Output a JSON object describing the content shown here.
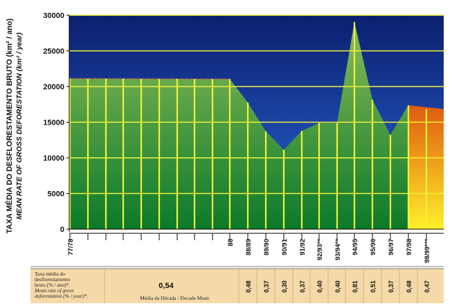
{
  "chart_data": {
    "type": "area",
    "ylabel": "TAXA MÉDIA DO DESFLORESTAMENTO BRUTO (km² / ano)",
    "ylabel_en": "MEAN RATE OF GROSS DEFORESTATION (km² / year)",
    "ylim": [
      0,
      30000
    ],
    "yticks": [
      "0",
      "5000",
      "10000",
      "15000",
      "20000",
      "25000",
      "30000"
    ],
    "categories": [
      "77/78",
      "88",
      "88/89",
      "89/90",
      "90/91",
      "91/92",
      "92/93**",
      "93/94**",
      "94/95",
      "95/96",
      "96/97",
      "97/98",
      "98/99***"
    ],
    "values": [
      21130,
      21050,
      17770,
      13730,
      11130,
      13786,
      14896,
      14896,
      29059,
      18161,
      13227,
      17383,
      16838
    ],
    "rates": [
      "",
      "",
      "0,48",
      "0,37",
      "0,30",
      "0,37",
      "0,40",
      "0,40",
      "0,81",
      "0,51",
      "0,37",
      "0,48",
      "0,47"
    ],
    "decade_mean_value": "0,54",
    "decade_mean_caption": "Média da Década / Decade Mean",
    "row_label_lines": [
      "Taxa média do",
      "desflorestamento",
      "bruto (% / ano)*.",
      "Mean rate of gross",
      "deforestation (% / year)*."
    ],
    "grid": true,
    "colors": {
      "sky_top": "#0b1f6e",
      "sky_bottom": "#2a66d8",
      "area_top": "#8cbb5a",
      "area_bottom": "#0b7a2a",
      "estimate_top": "#e05a10",
      "estimate_bottom": "#fff02a",
      "gridline": "#f2f23a",
      "dash": "#e05050",
      "table_bg": "#f5d9a8"
    }
  }
}
